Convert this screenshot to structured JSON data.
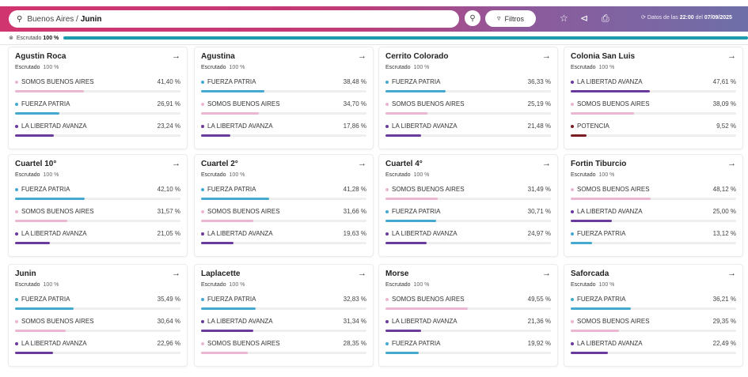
{
  "header": {
    "location_prefix": "Buenos Aires /",
    "location_current": "Junin",
    "filters_label": "Filtros",
    "datos_prefix": "Datos de las",
    "datos_time": "22:00",
    "datos_mid": "del",
    "datos_date": "07/09/2025"
  },
  "progress": {
    "label": "Escrutado",
    "value": "100 %",
    "fraction": 1.0
  },
  "colors": {
    "SOMOS BUENOS AIRES": "#eab6d2",
    "FUERZA PATRIA": "#45a8cf",
    "LA LIBERTAD AVANZA": "#6a3a9c",
    "POTENCIA": "#7b1c24"
  },
  "escrutado_label": "Escrutado",
  "cards": [
    {
      "name": "Agustin Roca",
      "escrutado": "100 %",
      "rows": [
        {
          "party": "SOMOS BUENOS AIRES",
          "pct": "41,40 %",
          "value": 41.4
        },
        {
          "party": "FUERZA PATRIA",
          "pct": "26,91 %",
          "value": 26.91
        },
        {
          "party": "LA LIBERTAD AVANZA",
          "pct": "23,24 %",
          "value": 23.24
        }
      ]
    },
    {
      "name": "Agustina",
      "escrutado": "100 %",
      "rows": [
        {
          "party": "FUERZA PATRIA",
          "pct": "38,48 %",
          "value": 38.48
        },
        {
          "party": "SOMOS BUENOS AIRES",
          "pct": "34,70 %",
          "value": 34.7
        },
        {
          "party": "LA LIBERTAD AVANZA",
          "pct": "17,86 %",
          "value": 17.86
        }
      ]
    },
    {
      "name": "Cerrito Colorado",
      "escrutado": "100 %",
      "rows": [
        {
          "party": "FUERZA PATRIA",
          "pct": "36,33 %",
          "value": 36.33
        },
        {
          "party": "SOMOS BUENOS AIRES",
          "pct": "25,19 %",
          "value": 25.19
        },
        {
          "party": "LA LIBERTAD AVANZA",
          "pct": "21,48 %",
          "value": 21.48
        }
      ]
    },
    {
      "name": "Colonia San Luis",
      "escrutado": "100 %",
      "rows": [
        {
          "party": "LA LIBERTAD AVANZA",
          "pct": "47,61 %",
          "value": 47.61
        },
        {
          "party": "SOMOS BUENOS AIRES",
          "pct": "38,09 %",
          "value": 38.09
        },
        {
          "party": "POTENCIA",
          "pct": "9,52 %",
          "value": 9.52
        }
      ]
    },
    {
      "name": "Cuartel 10°",
      "escrutado": "100 %",
      "rows": [
        {
          "party": "FUERZA PATRIA",
          "pct": "42,10 %",
          "value": 42.1
        },
        {
          "party": "SOMOS BUENOS AIRES",
          "pct": "31,57 %",
          "value": 31.57
        },
        {
          "party": "LA LIBERTAD AVANZA",
          "pct": "21,05 %",
          "value": 21.05
        }
      ]
    },
    {
      "name": "Cuartel 2°",
      "escrutado": "100 %",
      "rows": [
        {
          "party": "FUERZA PATRIA",
          "pct": "41,28 %",
          "value": 41.28
        },
        {
          "party": "SOMOS BUENOS AIRES",
          "pct": "31,66 %",
          "value": 31.66
        },
        {
          "party": "LA LIBERTAD AVANZA",
          "pct": "19,63 %",
          "value": 19.63
        }
      ]
    },
    {
      "name": "Cuartel 4°",
      "escrutado": "100 %",
      "rows": [
        {
          "party": "SOMOS BUENOS AIRES",
          "pct": "31,49 %",
          "value": 31.49
        },
        {
          "party": "FUERZA PATRIA",
          "pct": "30,71 %",
          "value": 30.71
        },
        {
          "party": "LA LIBERTAD AVANZA",
          "pct": "24,97 %",
          "value": 24.97
        }
      ]
    },
    {
      "name": "Fortin Tiburcio",
      "escrutado": "100 %",
      "rows": [
        {
          "party": "SOMOS BUENOS AIRES",
          "pct": "48,12 %",
          "value": 48.12
        },
        {
          "party": "LA LIBERTAD AVANZA",
          "pct": "25,00 %",
          "value": 25.0
        },
        {
          "party": "FUERZA PATRIA",
          "pct": "13,12 %",
          "value": 13.12
        }
      ]
    },
    {
      "name": "Junin",
      "escrutado": "100 %",
      "rows": [
        {
          "party": "FUERZA PATRIA",
          "pct": "35,49 %",
          "value": 35.49
        },
        {
          "party": "SOMOS BUENOS AIRES",
          "pct": "30,64 %",
          "value": 30.64
        },
        {
          "party": "LA LIBERTAD AVANZA",
          "pct": "22,96 %",
          "value": 22.96
        }
      ]
    },
    {
      "name": "Laplacette",
      "escrutado": "100 %",
      "rows": [
        {
          "party": "FUERZA PATRIA",
          "pct": "32,83 %",
          "value": 32.83
        },
        {
          "party": "LA LIBERTAD AVANZA",
          "pct": "31,34 %",
          "value": 31.34
        },
        {
          "party": "SOMOS BUENOS AIRES",
          "pct": "28,35 %",
          "value": 28.35
        }
      ]
    },
    {
      "name": "Morse",
      "escrutado": "100 %",
      "rows": [
        {
          "party": "SOMOS BUENOS AIRES",
          "pct": "49,55 %",
          "value": 49.55
        },
        {
          "party": "LA LIBERTAD AVANZA",
          "pct": "21,36 %",
          "value": 21.36
        },
        {
          "party": "FUERZA PATRIA",
          "pct": "19,92 %",
          "value": 19.92
        }
      ]
    },
    {
      "name": "Saforcada",
      "escrutado": "100 %",
      "rows": [
        {
          "party": "FUERZA PATRIA",
          "pct": "36,21 %",
          "value": 36.21
        },
        {
          "party": "SOMOS BUENOS AIRES",
          "pct": "29,35 %",
          "value": 29.35
        },
        {
          "party": "LA LIBERTAD AVANZA",
          "pct": "22,49 %",
          "value": 22.49
        }
      ]
    }
  ]
}
